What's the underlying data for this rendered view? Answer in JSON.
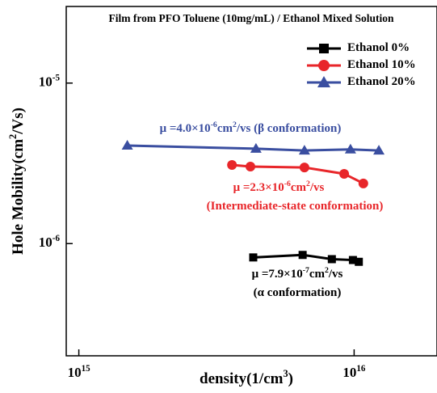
{
  "chart_data": {
    "type": "line",
    "title": "Film from PFO Toluene (10mg/mL) / Ethanol Mixed Solution",
    "xlabel": "density(1/cm^3)",
    "ylabel": "Hole Mobility(cm^2/Vs)",
    "xscale": "log",
    "yscale": "log",
    "xlim": [
      900000000000000.0,
      2e+16
    ],
    "ylim": [
      2e-07,
      3e-05
    ],
    "xticks": [
      {
        "value": 1000000000000000.0,
        "label": "10^15"
      },
      {
        "value": 1e+16,
        "label": "10^16"
      }
    ],
    "yticks": [
      {
        "value": 1e-06,
        "label": "10^-6"
      },
      {
        "value": 1e-05,
        "label": "10^-5"
      }
    ],
    "legend": "upper right",
    "series": [
      {
        "name": "Ethanol 0%",
        "color": "#000000",
        "marker": "square",
        "x": [
          4300000000000000.0,
          6500000000000000.0,
          8300000000000000.0,
          9900000000000000.0,
          1.04e+16
        ],
        "values": [
          8.2e-07,
          8.5e-07,
          8e-07,
          7.9e-07,
          7.7e-07
        ]
      },
      {
        "name": "Ethanol 10%",
        "color": "#e8262a",
        "marker": "circle",
        "x": [
          3600000000000000.0,
          4200000000000000.0,
          6600000000000000.0,
          9200000000000000.0,
          1.08e+16
        ],
        "values": [
          3.09e-06,
          3.02e-06,
          2.98e-06,
          2.72e-06,
          2.37e-06
        ]
      },
      {
        "name": "Ethanol 20%",
        "color": "#3a4ea0",
        "marker": "triangle",
        "x": [
          1500000000000000.0,
          4400000000000000.0,
          6600000000000000.0,
          9700000000000000.0,
          1.23e+16
        ],
        "values": [
          4.08e-06,
          3.9e-06,
          3.8e-06,
          3.86e-06,
          3.8e-06
        ]
      }
    ],
    "annotations": [
      {
        "text": "μ =4.0×10^-6cm^2/vs (β  conformation)",
        "color": "#3a4ea0"
      },
      {
        "text": "μ =2.3×10^-6cm^2/vs",
        "color": "#e8262a"
      },
      {
        "text": "(Intermediate-state conformation)",
        "color": "#e8262a"
      },
      {
        "text": "μ =7.9×10^-7cm^2/vs",
        "color": "#000000"
      },
      {
        "text": "(α conformation)",
        "color": "#000000"
      }
    ]
  }
}
